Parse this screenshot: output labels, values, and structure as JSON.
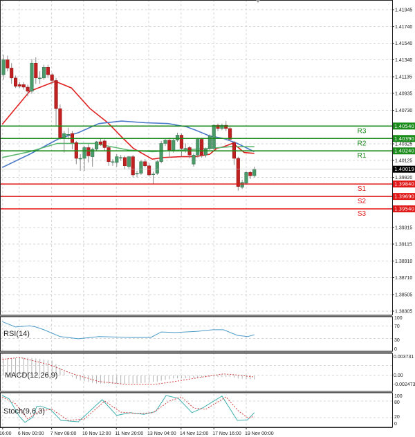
{
  "chart_data": [
    {
      "type": "candlestick",
      "panel": "price",
      "yaxis_ticks": [
        1.41945,
        1.4174,
        1.4154,
        1.4134,
        1.41135,
        1.40935,
        1.4073,
        1.40325,
        1.40125,
        1.3992,
        1.39315,
        1.39115,
        1.3891,
        1.3871,
        1.38505,
        1.38305
      ],
      "ylim": [
        1.38305,
        1.41945
      ],
      "grid": true,
      "current_price": "1.40019",
      "ohlc": [
        [
          1.4116,
          1.414,
          1.411,
          1.4134
        ],
        [
          1.4134,
          1.4139,
          1.412,
          1.4124
        ],
        [
          1.4124,
          1.413,
          1.4105,
          1.4112
        ],
        [
          1.4112,
          1.4115,
          1.41,
          1.4102
        ],
        [
          1.4104,
          1.4107,
          1.41,
          1.4102
        ],
        [
          1.4104,
          1.4107,
          1.4098,
          1.4101
        ],
        [
          1.4101,
          1.4104,
          1.409,
          1.4096
        ],
        [
          1.4096,
          1.4135,
          1.4093,
          1.413
        ],
        [
          1.413,
          1.4137,
          1.4105,
          1.4112
        ],
        [
          1.4112,
          1.412,
          1.4105,
          1.4112
        ],
        [
          1.4112,
          1.4128,
          1.411,
          1.4125
        ],
        [
          1.4125,
          1.4128,
          1.4112,
          1.4116
        ],
        [
          1.4116,
          1.4118,
          1.4105,
          1.4109
        ],
        [
          1.4109,
          1.4112,
          1.4054,
          1.4075
        ],
        [
          1.4075,
          1.408,
          1.4038,
          1.404
        ],
        [
          1.404,
          1.4048,
          1.4022,
          1.4045
        ],
        [
          1.4044,
          1.4052,
          1.4038,
          1.4044
        ],
        [
          1.4045,
          1.4048,
          1.4026,
          1.4034
        ],
        [
          1.4034,
          1.4036,
          1.4008,
          1.4015
        ],
        [
          1.4015,
          1.402,
          1.4,
          1.4015
        ],
        [
          1.4015,
          1.403,
          1.4,
          1.4028
        ],
        [
          1.4028,
          1.4032,
          1.401,
          1.4018
        ],
        [
          1.4017,
          1.4028,
          1.4005,
          1.4026
        ],
        [
          1.4026,
          1.4036,
          1.4024,
          1.4035
        ],
        [
          1.4035,
          1.4039,
          1.403,
          1.4032
        ],
        [
          1.4036,
          1.4038,
          1.4024,
          1.4028
        ],
        [
          1.4028,
          1.403,
          1.4006,
          1.4011
        ],
        [
          1.4011,
          1.4014,
          1.4006,
          1.4011
        ],
        [
          1.401,
          1.402,
          1.4005,
          1.4017
        ],
        [
          1.4016,
          1.4019,
          1.4012,
          1.4016
        ],
        [
          1.4016,
          1.4018,
          1.4002,
          1.4006
        ],
        [
          1.4005,
          1.4018,
          1.4002,
          1.4017
        ],
        [
          1.4017,
          1.4019,
          1.3992,
          1.3995
        ],
        [
          1.3997,
          1.4,
          1.3992,
          1.3997
        ],
        [
          1.3997,
          1.4013,
          1.3995,
          1.4011
        ],
        [
          1.4011,
          1.4014,
          1.4004,
          1.4006
        ],
        [
          1.4006,
          1.4009,
          1.3993,
          1.3995
        ],
        [
          1.3996,
          1.3999,
          1.3984,
          1.3996
        ],
        [
          1.3997,
          1.4013,
          1.3995,
          1.4011
        ],
        [
          1.4011,
          1.4036,
          1.4009,
          1.4033
        ],
        [
          1.4033,
          1.4039,
          1.403,
          1.4037
        ],
        [
          1.4037,
          1.404,
          1.4016,
          1.4025
        ],
        [
          1.4025,
          1.4039,
          1.4022,
          1.4037
        ],
        [
          1.4037,
          1.4046,
          1.4035,
          1.4043
        ],
        [
          1.4043,
          1.4045,
          1.4017,
          1.4027
        ],
        [
          1.4027,
          1.4033,
          1.4022,
          1.4027
        ],
        [
          1.4028,
          1.403,
          1.4015,
          1.4019
        ],
        [
          1.4008,
          1.4021,
          1.4005,
          1.4019
        ],
        [
          1.4019,
          1.404,
          1.4016,
          1.4038
        ],
        [
          1.4038,
          1.404,
          1.4016,
          1.4019
        ],
        [
          1.4019,
          1.4028,
          1.4016,
          1.4026
        ],
        [
          1.4027,
          1.4044,
          1.4025,
          1.4042
        ],
        [
          1.4027,
          1.4056,
          1.4025,
          1.4055
        ],
        [
          1.4055,
          1.4057,
          1.4048,
          1.4051
        ],
        [
          1.4051,
          1.4057,
          1.4049,
          1.4055
        ],
        [
          1.4055,
          1.406,
          1.4048,
          1.4051
        ],
        [
          1.4051,
          1.4053,
          1.4036,
          1.4038
        ],
        [
          1.4034,
          1.4036,
          1.4007,
          1.4015
        ],
        [
          1.4015,
          1.4017,
          1.3976,
          1.3981
        ],
        [
          1.398,
          1.3989,
          1.3978,
          1.3986
        ],
        [
          1.3985,
          1.3999,
          1.3983,
          1.3998
        ],
        [
          1.3998,
          1.4,
          1.399,
          1.3994
        ],
        [
          1.3994,
          1.4005,
          1.3992,
          1.4002
        ]
      ],
      "moving_averages": [
        {
          "color": "#e02020",
          "points": [
            [
              -0.3,
              1.4056
            ],
            [
              6.5,
              1.4096
            ],
            [
              12.8,
              1.4108
            ],
            [
              16.8,
              1.41
            ],
            [
              21.4,
              1.4075
            ],
            [
              25.8,
              1.4058
            ],
            [
              29.2,
              1.4041
            ],
            [
              32.1,
              1.4027
            ],
            [
              36.8,
              1.4014
            ],
            [
              39.5,
              1.4016
            ],
            [
              44,
              1.4017
            ],
            [
              47.5,
              1.4017
            ],
            [
              51,
              1.402
            ],
            [
              52.7,
              1.4027
            ],
            [
              54.4,
              1.4029
            ],
            [
              56.6,
              1.4033
            ],
            [
              57.8,
              1.4029
            ],
            [
              59.5,
              1.4022
            ],
            [
              62,
              1.4021
            ]
          ]
        },
        {
          "color": "#4a78c8",
          "points": [
            [
              -0.3,
              1.4004
            ],
            [
              6.5,
              1.402
            ],
            [
              13.8,
              1.4039
            ],
            [
              18.5,
              1.4046
            ],
            [
              23.6,
              1.4057
            ],
            [
              29.2,
              1.406
            ],
            [
              35,
              1.4058
            ],
            [
              40.7,
              1.4057
            ],
            [
              45.3,
              1.4053
            ],
            [
              47.5,
              1.4049
            ],
            [
              51,
              1.4042
            ],
            [
              54.4,
              1.4039
            ],
            [
              57.8,
              1.4033
            ],
            [
              60.3,
              1.4027
            ],
            [
              62,
              1.4023
            ]
          ]
        },
        {
          "color": "#5cb870",
          "points": [
            [
              -0.3,
              1.4016
            ],
            [
              6.5,
              1.4023
            ],
            [
              13.3,
              1.4033
            ],
            [
              22.4,
              1.4033
            ],
            [
              30.9,
              1.4025
            ],
            [
              36.8,
              1.4023
            ],
            [
              44,
              1.4025
            ],
            [
              51,
              1.4027
            ],
            [
              56,
              1.4029
            ],
            [
              62,
              1.4029
            ]
          ]
        }
      ],
      "levels": [
        {
          "name": "R3",
          "price": 1.4054,
          "label": "1.40540",
          "color": "#1a8a1a"
        },
        {
          "name": "R2",
          "price": 1.4039,
          "label": "1.40390",
          "color": "#1a8a1a"
        },
        {
          "name": "R1",
          "price": 1.4024,
          "label": "1.40240",
          "color": "#1a8a1a"
        },
        {
          "name": "S1",
          "price": 1.3984,
          "label": "1.39840",
          "color": "#e01818"
        },
        {
          "name": "S2",
          "price": 1.3969,
          "label": "1.39690",
          "color": "#e01818"
        },
        {
          "name": "S3",
          "price": 1.3954,
          "label": "1.39540",
          "color": "#e01818"
        }
      ],
      "bullish_color": "#4a9a6a",
      "bearish_color": "#c02020"
    },
    {
      "type": "line",
      "panel": "rsi",
      "label": "RSI(14)",
      "yaxis_ticks": [
        "100",
        "70",
        "30",
        "0"
      ],
      "ylim": [
        0,
        100
      ],
      "color": "#4a9ac8",
      "points": [
        [
          -0.3,
          84
        ],
        [
          3,
          67
        ],
        [
          6.5,
          71
        ],
        [
          8,
          67
        ],
        [
          10,
          58
        ],
        [
          14,
          36
        ],
        [
          18.5,
          29
        ],
        [
          23.6,
          36
        ],
        [
          32,
          33
        ],
        [
          36.4,
          33
        ],
        [
          39,
          51
        ],
        [
          42.4,
          49
        ],
        [
          48,
          53
        ],
        [
          51.8,
          58
        ],
        [
          54.4,
          58
        ],
        [
          57.8,
          40
        ],
        [
          60.3,
          36
        ],
        [
          62,
          42
        ]
      ]
    },
    {
      "type": "bar+line",
      "panel": "macd",
      "label": "MACD(12,26,9)",
      "yaxis_ticks": [
        "0.003731",
        "0.00",
        "-0.002473"
      ],
      "ylim": [
        -0.002473,
        0.003731
      ],
      "histogram_color": "#b0b0b0",
      "signal_color": "#d04040",
      "histogram": [
        [
          -0.3,
          0.0034
        ],
        [
          6,
          0.0036
        ],
        [
          12,
          0.003
        ],
        [
          14,
          0.0015
        ],
        [
          16,
          0.0
        ],
        [
          19,
          -0.001
        ],
        [
          23,
          -0.0016
        ],
        [
          28,
          -0.0017
        ],
        [
          33,
          -0.0016
        ],
        [
          38,
          -0.0012
        ],
        [
          42,
          -0.0006
        ],
        [
          47,
          -0.0005
        ],
        [
          52,
          -0.0003
        ],
        [
          56,
          -0.0003
        ],
        [
          58,
          -0.0006
        ],
        [
          62,
          -0.0008
        ]
      ],
      "signal": [
        [
          -0.3,
          0.0032
        ],
        [
          4,
          0.0036
        ],
        [
          11.6,
          0.0021
        ],
        [
          16.8,
          0.0004
        ],
        [
          23.6,
          -0.0012
        ],
        [
          30.4,
          -0.0018
        ],
        [
          37.3,
          -0.0018
        ],
        [
          42.4,
          -0.0012
        ],
        [
          49.2,
          -0.0003
        ],
        [
          54.4,
          0.0003
        ],
        [
          57.8,
          0.0001
        ],
        [
          62,
          -0.0003
        ]
      ]
    },
    {
      "type": "line",
      "panel": "stochastic",
      "label": "Stoch(9,6,3)",
      "yaxis_ticks": [
        "100",
        "80",
        "20",
        "0"
      ],
      "ylim": [
        0,
        100
      ],
      "main_color": "#40b0b0",
      "signal_color": "#d04040",
      "main": [
        [
          -0.3,
          100
        ],
        [
          1.4,
          88
        ],
        [
          3.9,
          25
        ],
        [
          5.3,
          3
        ],
        [
          7.3,
          22
        ],
        [
          8.2,
          60
        ],
        [
          9.1,
          62
        ],
        [
          11.6,
          50
        ],
        [
          14.2,
          10
        ],
        [
          18.5,
          5
        ],
        [
          24.4,
          85
        ],
        [
          28,
          28
        ],
        [
          31.3,
          38
        ],
        [
          34.7,
          32
        ],
        [
          37.6,
          42
        ],
        [
          40.2,
          100
        ],
        [
          43.2,
          90
        ],
        [
          46.6,
          38
        ],
        [
          49.2,
          55
        ],
        [
          54,
          98
        ],
        [
          57.8,
          10
        ],
        [
          60.3,
          12
        ],
        [
          62,
          38
        ]
      ],
      "signal": [
        [
          -0.3,
          95
        ],
        [
          3,
          70
        ],
        [
          6,
          15
        ],
        [
          9,
          45
        ],
        [
          12,
          50
        ],
        [
          16,
          10
        ],
        [
          20,
          15
        ],
        [
          25,
          80
        ],
        [
          29,
          40
        ],
        [
          33,
          35
        ],
        [
          37,
          38
        ],
        [
          41,
          80
        ],
        [
          44,
          95
        ],
        [
          47,
          55
        ],
        [
          50,
          50
        ],
        [
          55,
          95
        ],
        [
          58,
          45
        ],
        [
          60.5,
          18
        ],
        [
          62,
          25
        ]
      ]
    }
  ],
  "xaxis": {
    "labels": [
      "16:00",
      "6 Nov 00:00",
      "7 Nov 08:00",
      "10 Nov 12:00",
      "11 Nov 20:00",
      "13 Nov 04:00",
      "14 Nov 12:00",
      "17 Nov 16:00",
      "19 Nov 00:00"
    ],
    "label_candle_index": [
      -0.2,
      3.9,
      11.9,
      19.8,
      27.9,
      35.9,
      43.9,
      52,
      60
    ]
  }
}
